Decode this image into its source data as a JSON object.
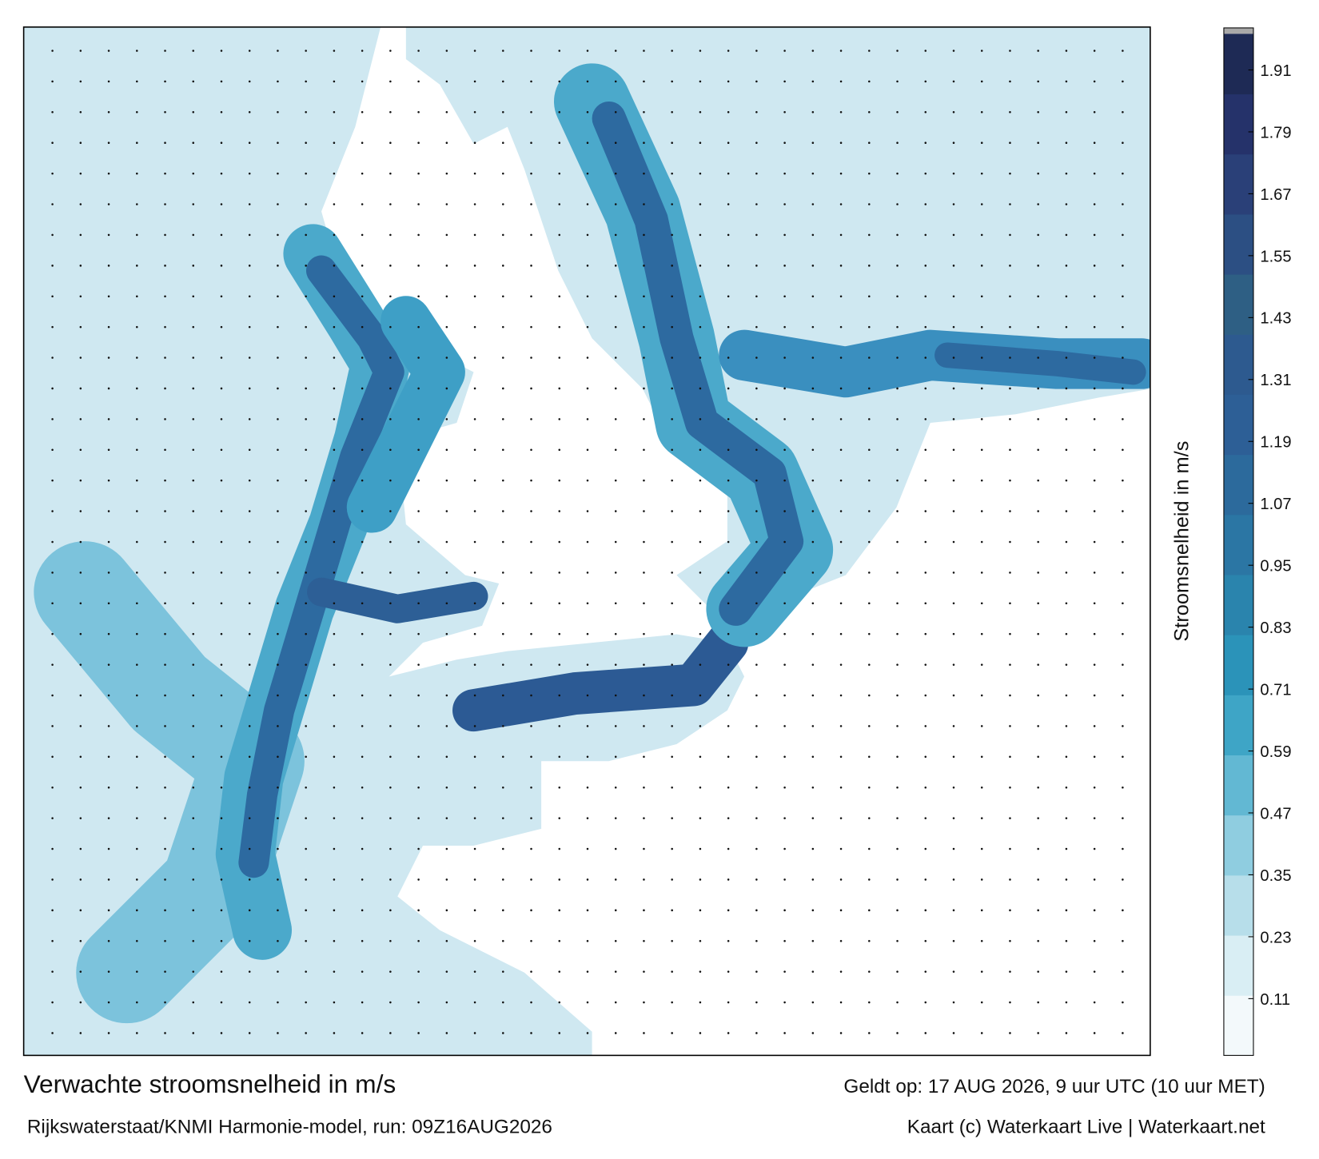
{
  "map": {
    "title": "Verwachte stroomsnelheid in m/s",
    "source": "Rijkswaterstaat/KNMI Harmonie-model, run: 09Z16AUG2026",
    "valid_time": "Geldt op: 17 AUG 2026, 9 uur UTC (10 uur MET)",
    "credit": "Kaart (c) Waterkaart Live | Waterkaart.net",
    "colorbar": {
      "label": "Stroomsnelheid in m/s",
      "clim": [
        0,
        1.98
      ],
      "ticks": [
        0.11,
        0.23,
        0.35,
        0.47,
        0.59,
        0.71,
        0.83,
        0.95,
        1.07,
        1.19,
        1.31,
        1.43,
        1.55,
        1.67,
        1.79,
        1.91
      ],
      "colors": [
        "#f3f9fb",
        "#d9eef4",
        "#b7deea",
        "#8fcde0",
        "#62b8d3",
        "#3ea5c6",
        "#2b93b9",
        "#2a84ad",
        "#2b76a4",
        "#2c6a9c",
        "#2d5f96",
        "#2d5a8f",
        "#2e5f84",
        "#2c4f83",
        "#2a4078",
        "#25326a",
        "#1e2a55"
      ]
    }
  }
}
